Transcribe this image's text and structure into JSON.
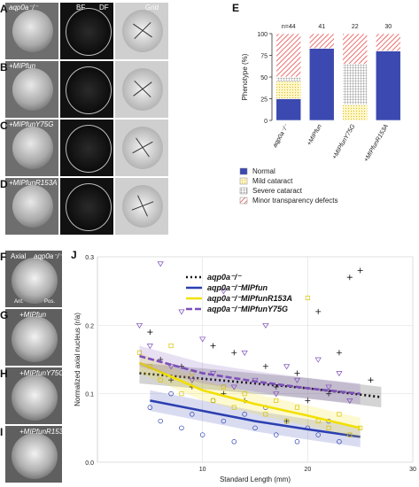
{
  "panels": {
    "A": {
      "letter": "A",
      "genotype": "aqp0a⁻/⁻",
      "col_bf": "BF",
      "col_df": "DF",
      "col_grid": "Grid"
    },
    "B": {
      "letter": "B",
      "genotype": "+MIPfun"
    },
    "C": {
      "letter": "C",
      "genotype": "+MIPfunY75G"
    },
    "D": {
      "letter": "D",
      "genotype": "+MIPfunR153A"
    },
    "F": {
      "letter": "F",
      "label_axial": "Axial",
      "genotype": "aqp0a⁻/⁻",
      "ant": "Ant.",
      "pos": "Pos."
    },
    "G": {
      "letter": "G",
      "genotype": "+MIPfun"
    },
    "H": {
      "letter": "H",
      "genotype": "+MIPfunY75G"
    },
    "I": {
      "letter": "I",
      "genotype": "+MIPfunR153A"
    }
  },
  "chart_data": [
    {
      "panel": "E",
      "type": "bar",
      "stacked": true,
      "ylabel": "Phenotype (%)",
      "ylim": [
        0,
        100
      ],
      "yticks": [
        "0",
        "25",
        "50",
        "75",
        "100"
      ],
      "categories": [
        "aqp0a⁻/⁻",
        "+MIPfun",
        "+MIPfunY75G",
        "+MIPfunR153A"
      ],
      "counts": [
        "n=44",
        "41",
        "22",
        "30"
      ],
      "series": [
        {
          "name": "Normal",
          "color": "#3b49b0",
          "values": [
            25,
            83,
            0,
            80
          ]
        },
        {
          "name": "Mild cataract",
          "color": "#f7e9a0",
          "values": [
            20,
            0,
            18,
            0
          ]
        },
        {
          "name": "Severe cataract",
          "color": "#cfcfcf",
          "values": [
            5,
            0,
            47,
            0
          ]
        },
        {
          "name": "Minor transparency defects",
          "color": "#e74c4c",
          "values": [
            50,
            17,
            35,
            20
          ]
        }
      ]
    },
    {
      "panel": "J",
      "type": "scatter",
      "xlabel": "Standard Length (mm)",
      "ylabel": "Normalized axial nucleus (r/a)",
      "xlim": [
        0,
        30
      ],
      "ylim": [
        0,
        0.3
      ],
      "xticks": [
        "10",
        "20",
        "30"
      ],
      "yticks": [
        "0.0",
        "0.1",
        "0.2",
        "0.3"
      ],
      "legend_position": "top-center",
      "series": [
        {
          "name": "aqp0a⁻/⁻",
          "color": "#111111",
          "marker": "plus",
          "fit": [
            [
              4,
              0.13
            ],
            [
              10,
              0.122
            ],
            [
              15,
              0.115
            ],
            [
              20,
              0.108
            ],
            [
              27,
              0.095
            ]
          ],
          "points": [
            [
              5,
              0.19
            ],
            [
              6,
              0.15
            ],
            [
              7,
              0.12
            ],
            [
              8,
              0.14
            ],
            [
              9,
              0.11
            ],
            [
              11,
              0.17
            ],
            [
              12,
              0.1
            ],
            [
              13,
              0.16
            ],
            [
              14,
              0.09
            ],
            [
              16,
              0.14
            ],
            [
              17,
              0.11
            ],
            [
              18,
              0.06
            ],
            [
              19,
              0.13
            ],
            [
              21,
              0.22
            ],
            [
              22,
              0.1
            ],
            [
              24,
              0.27
            ],
            [
              25,
              0.28
            ],
            [
              26,
              0.12
            ],
            [
              23,
              0.16
            ],
            [
              20,
              0.09
            ]
          ]
        },
        {
          "name": "aqp0a⁻/⁻MIPfun",
          "color": "#2b3fb0",
          "marker": "circle",
          "fit": [
            [
              5,
              0.09
            ],
            [
              10,
              0.075
            ],
            [
              15,
              0.06
            ],
            [
              20,
              0.048
            ],
            [
              25,
              0.037
            ]
          ],
          "points": [
            [
              5,
              0.08
            ],
            [
              6,
              0.06
            ],
            [
              7,
              0.1
            ],
            [
              8,
              0.05
            ],
            [
              9,
              0.07
            ],
            [
              10,
              0.04
            ],
            [
              11,
              0.09
            ],
            [
              12,
              0.06
            ],
            [
              13,
              0.03
            ],
            [
              14,
              0.07
            ],
            [
              15,
              0.05
            ],
            [
              16,
              0.08
            ],
            [
              17,
              0.04
            ],
            [
              18,
              0.06
            ],
            [
              19,
              0.03
            ],
            [
              20,
              0.05
            ],
            [
              21,
              0.04
            ],
            [
              22,
              0.06
            ],
            [
              23,
              0.03
            ],
            [
              24,
              0.04
            ]
          ]
        },
        {
          "name": "aqp0a⁻/⁻MIPfunR153A",
          "color": "#f2e000",
          "marker": "square",
          "fit": [
            [
              4,
              0.145
            ],
            [
              10,
              0.105
            ],
            [
              15,
              0.085
            ],
            [
              20,
              0.068
            ],
            [
              25,
              0.05
            ]
          ],
          "points": [
            [
              4,
              0.16
            ],
            [
              5,
              0.14
            ],
            [
              6,
              0.12
            ],
            [
              7,
              0.17
            ],
            [
              8,
              0.1
            ],
            [
              9,
              0.13
            ],
            [
              11,
              0.09
            ],
            [
              12,
              0.11
            ],
            [
              13,
              0.08
            ],
            [
              14,
              0.1
            ],
            [
              16,
              0.07
            ],
            [
              17,
              0.09
            ],
            [
              18,
              0.06
            ],
            [
              19,
              0.08
            ],
            [
              21,
              0.06
            ],
            [
              22,
              0.05
            ],
            [
              23,
              0.07
            ],
            [
              24,
              0.04
            ],
            [
              25,
              0.05
            ],
            [
              20,
              0.24
            ]
          ]
        },
        {
          "name": "aqp0a⁻/⁻MIPfunY75G",
          "color": "#7b4fb8",
          "marker": "triangle",
          "fit": [
            [
              4,
              0.155
            ],
            [
              10,
              0.13
            ],
            [
              15,
              0.118
            ],
            [
              20,
              0.108
            ],
            [
              25,
              0.1
            ]
          ],
          "points": [
            [
              4,
              0.2
            ],
            [
              5,
              0.17
            ],
            [
              6,
              0.29
            ],
            [
              7,
              0.14
            ],
            [
              8,
              0.22
            ],
            [
              9,
              0.12
            ],
            [
              10,
              0.18
            ],
            [
              11,
              0.13
            ],
            [
              12,
              0.25
            ],
            [
              13,
              0.11
            ],
            [
              14,
              0.16
            ],
            [
              15,
              0.12
            ],
            [
              16,
              0.2
            ],
            [
              17,
              0.1
            ],
            [
              18,
              0.14
            ],
            [
              19,
              0.12
            ],
            [
              21,
              0.15
            ],
            [
              22,
              0.11
            ],
            [
              23,
              0.13
            ],
            [
              24,
              0.09
            ]
          ]
        }
      ]
    }
  ]
}
